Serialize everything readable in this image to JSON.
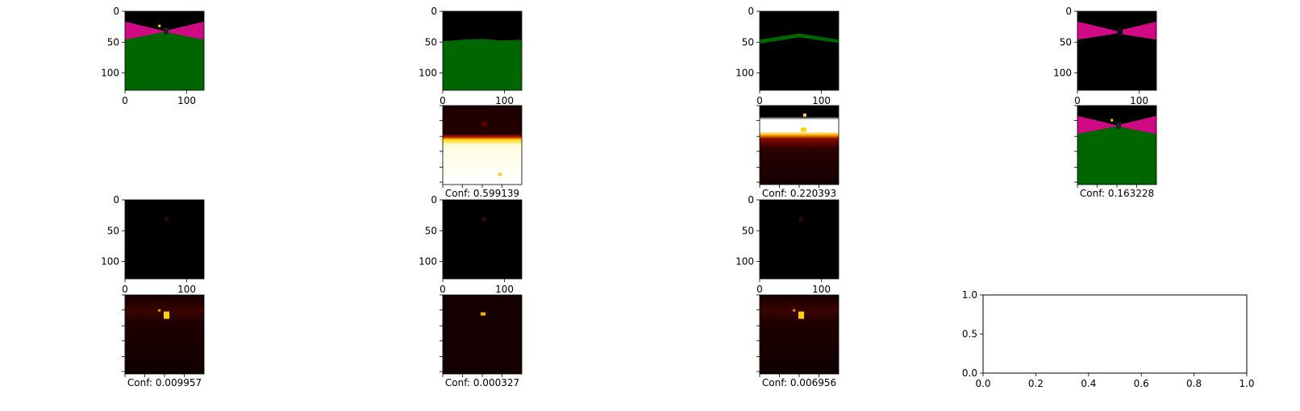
{
  "chart_data": [
    {
      "type": "image",
      "panel": "r1c1",
      "xticks": [
        "0",
        "100"
      ],
      "yticks": [
        "0",
        "50",
        "100"
      ],
      "content": "segmentation"
    },
    {
      "type": "image",
      "panel": "r1c2",
      "xticks": [
        "0",
        "100"
      ],
      "yticks": [
        "0",
        "50",
        "100"
      ],
      "content": "ground-mask"
    },
    {
      "type": "image",
      "panel": "r1c3",
      "xticks": [
        "0",
        "100"
      ],
      "yticks": [
        "0",
        "50",
        "100"
      ],
      "content": "edge-mask"
    },
    {
      "type": "image",
      "panel": "r1c4",
      "xticks": [
        "0",
        "100"
      ],
      "yticks": [
        "0",
        "50",
        "100"
      ],
      "content": "wall-mask"
    },
    {
      "type": "heatmap",
      "panel": "r2c2",
      "caption": "Conf: 0.599139",
      "confidence": 0.599139,
      "content": "heat-ground"
    },
    {
      "type": "heatmap",
      "panel": "r2c3",
      "caption": "Conf: 0.220393",
      "confidence": 0.220393,
      "content": "heat-edge"
    },
    {
      "type": "image",
      "panel": "r2c4",
      "caption": "Conf: 0.163228",
      "confidence": 0.163228,
      "content": "segmentation"
    },
    {
      "type": "image",
      "panel": "r3c1",
      "xticks": [
        "0",
        "100"
      ],
      "yticks": [
        "0",
        "50",
        "100"
      ],
      "content": "dark-mask"
    },
    {
      "type": "image",
      "panel": "r3c2",
      "xticks": [
        "0",
        "100"
      ],
      "yticks": [
        "0",
        "50",
        "100"
      ],
      "content": "dark-mask"
    },
    {
      "type": "image",
      "panel": "r3c3",
      "xticks": [
        "0",
        "100"
      ],
      "yticks": [
        "0",
        "50",
        "100"
      ],
      "content": "dark-mask"
    },
    {
      "type": "heatmap",
      "panel": "r4c1",
      "caption": "Conf: 0.009957",
      "confidence": 0.009957,
      "content": "heat-dark"
    },
    {
      "type": "heatmap",
      "panel": "r4c2",
      "caption": "Conf: 0.000327",
      "confidence": 0.000327,
      "content": "heat-dark-spot"
    },
    {
      "type": "heatmap",
      "panel": "r4c3",
      "caption": "Conf: 0.006956",
      "confidence": 0.006956,
      "content": "heat-dark"
    },
    {
      "type": "empty-axes",
      "panel": "r4c4",
      "xlim": [
        0.0,
        1.0
      ],
      "ylim": [
        0.0,
        1.0
      ],
      "xticks": [
        "0.0",
        "0.2",
        "0.4",
        "0.6",
        "0.8",
        "1.0"
      ],
      "yticks": [
        "0.0",
        "0.5",
        "1.0"
      ]
    }
  ],
  "colors": {
    "sky": "#000000",
    "wall": "#d00a85",
    "ground": "#006600",
    "heat_low": "#000000",
    "heat_mid": "#d31a00",
    "heat_high": "#ffd200",
    "heat_max": "#ffffff"
  }
}
